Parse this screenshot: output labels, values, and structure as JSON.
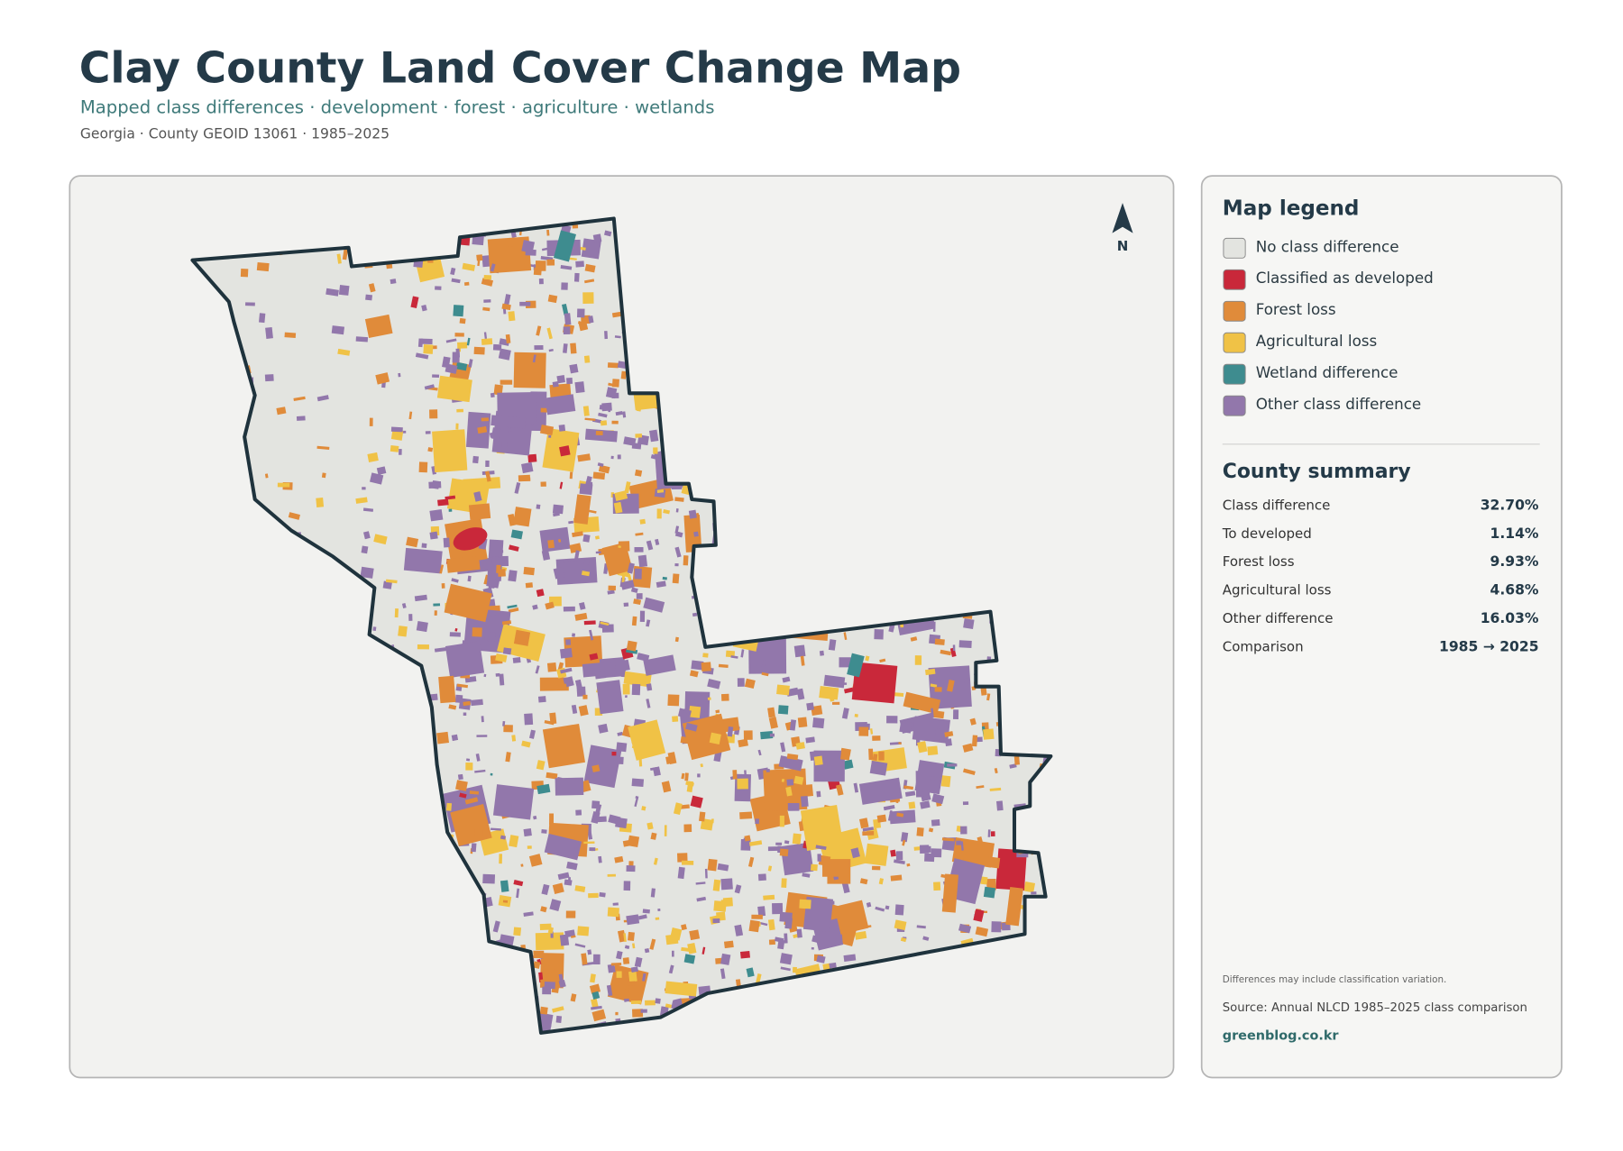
{
  "header": {
    "title": "Clay County Land Cover Change Map",
    "subtitle": "Mapped class differences · development · forest · agriculture · wetlands",
    "meta": "Georgia · County GEOID 13061 · 1985–2025"
  },
  "map": {
    "north_label": "N"
  },
  "legend": {
    "title": "Map legend",
    "items": [
      {
        "label": "No class difference",
        "color": "#e3e4e0"
      },
      {
        "label": "Classified as developed",
        "color": "#c9283a"
      },
      {
        "label": "Forest loss",
        "color": "#e08b3a"
      },
      {
        "label": "Agricultural loss",
        "color": "#f0c246"
      },
      {
        "label": "Wetland difference",
        "color": "#3e8c8f"
      },
      {
        "label": "Other class difference",
        "color": "#9277ab"
      }
    ]
  },
  "summary": {
    "title": "County summary",
    "rows": [
      {
        "label": "Class difference",
        "value": "32.70%"
      },
      {
        "label": "To developed",
        "value": "1.14%"
      },
      {
        "label": "Forest loss",
        "value": "9.93%"
      },
      {
        "label": "Agricultural loss",
        "value": "4.68%"
      },
      {
        "label": "Other difference",
        "value": "16.03%"
      },
      {
        "label": "Comparison",
        "value": "1985 → 2025"
      }
    ]
  },
  "footer": {
    "note": "Differences may include classification variation.",
    "source": "Source: Annual NLCD 1985–2025 class comparison",
    "site": "greenblog.co.kr"
  }
}
